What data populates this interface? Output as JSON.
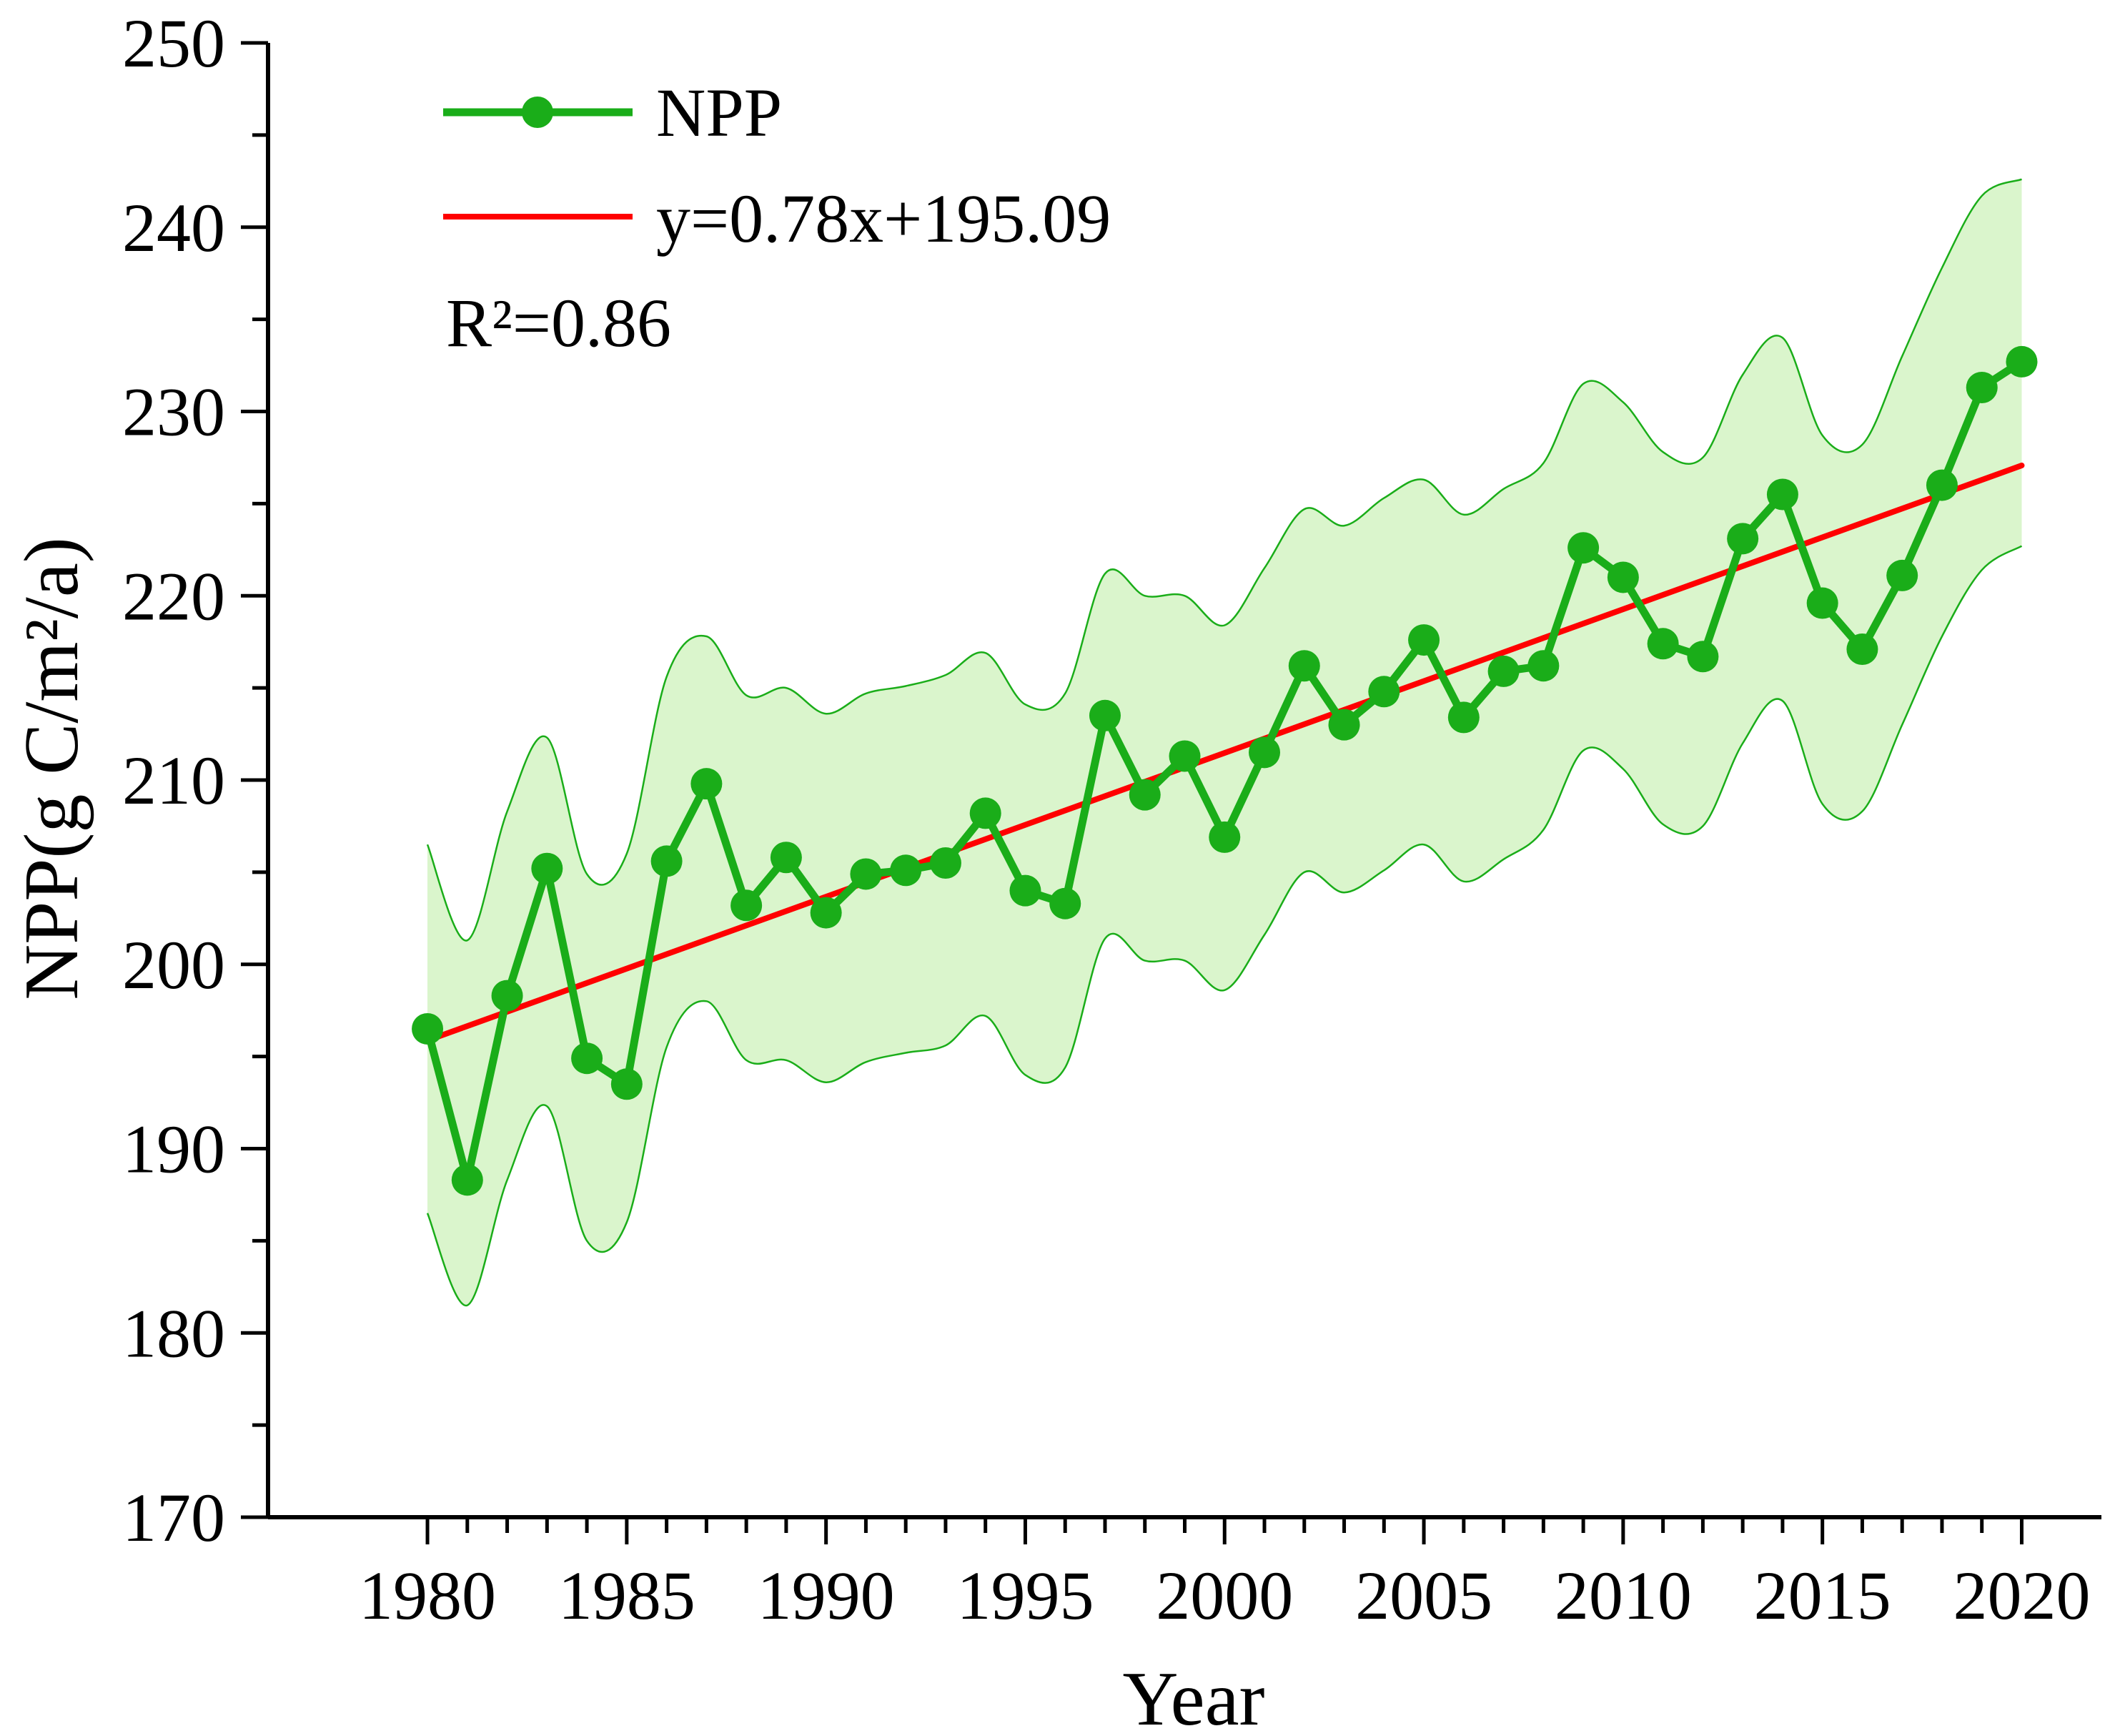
{
  "chart_data": {
    "type": "line",
    "title": "",
    "xlabel": "Year",
    "ylabel": "NPP(g C/m²/a)",
    "xlim": [
      1976,
      2022
    ],
    "ylim": [
      170,
      250
    ],
    "x_ticks": [
      "1980",
      "1985",
      "1990",
      "1995",
      "2000",
      "2005",
      "2010",
      "2015",
      "2020"
    ],
    "y_ticks": [
      "170",
      "180",
      "190",
      "200",
      "210",
      "220",
      "230",
      "240",
      "250"
    ],
    "x": [
      1980,
      1981,
      1982,
      1983,
      1984,
      1985,
      1986,
      1987,
      1988,
      1989,
      1990,
      1991,
      1992,
      1993,
      1994,
      1995,
      1996,
      1997,
      1998,
      1999,
      2000,
      2001,
      2002,
      2003,
      2004,
      2005,
      2006,
      2007,
      2008,
      2009,
      2010,
      2011,
      2012,
      2013,
      2014,
      2015,
      2016,
      2017,
      2018,
      2019,
      2020
    ],
    "series": [
      {
        "name": "NPP",
        "color": "#1aad19",
        "marker": "circle",
        "values": [
          196.5,
          188.3,
          198.3,
          205.2,
          194.9,
          193.5,
          205.6,
          209.8,
          203.2,
          205.8,
          202.8,
          204.9,
          205.1,
          205.5,
          208.2,
          204.0,
          203.3,
          213.5,
          209.2,
          211.3,
          206.9,
          211.5,
          216.2,
          213.0,
          214.8,
          217.6,
          213.4,
          215.9,
          216.2,
          222.6,
          221.0,
          217.4,
          216.7,
          223.1,
          225.5,
          219.6,
          217.1,
          221.1,
          226.0,
          231.3,
          232.7
        ]
      }
    ],
    "band": {
      "fill": "#daf5cc",
      "edge_color": "#1aad19",
      "upper": [
        206.5,
        201.3,
        208.3,
        212.3,
        204.9,
        206.0,
        215.6,
        217.8,
        214.6,
        215.0,
        213.6,
        214.7,
        215.1,
        215.7,
        216.9,
        214.1,
        214.7,
        221.2,
        220.0,
        220.0,
        218.4,
        221.5,
        224.7,
        223.8,
        225.3,
        226.3,
        224.4,
        225.8,
        227.2,
        231.5,
        230.5,
        227.8,
        227.5,
        232.0,
        234.0,
        228.7,
        228.2,
        233.0,
        237.8,
        241.7,
        242.6
      ],
      "lower": [
        186.5,
        181.5,
        188.3,
        192.3,
        185.0,
        186.0,
        195.5,
        198.0,
        194.8,
        194.8,
        193.6,
        194.7,
        195.2,
        195.6,
        197.2,
        194.0,
        194.4,
        201.4,
        200.2,
        200.2,
        198.6,
        201.6,
        205.0,
        203.9,
        205.1,
        206.5,
        204.5,
        205.7,
        207.3,
        211.6,
        210.6,
        207.6,
        207.5,
        212.0,
        214.3,
        208.7,
        208.3,
        213.0,
        217.8,
        221.4,
        222.7
      ]
    },
    "trend": {
      "name": "y=0.78x+195.09",
      "color": "#ff0000",
      "start": [
        1980,
        195.87
      ],
      "end": [
        2020,
        227.07
      ]
    },
    "annotation": "R²=0.86",
    "legend_position": "top-left"
  }
}
